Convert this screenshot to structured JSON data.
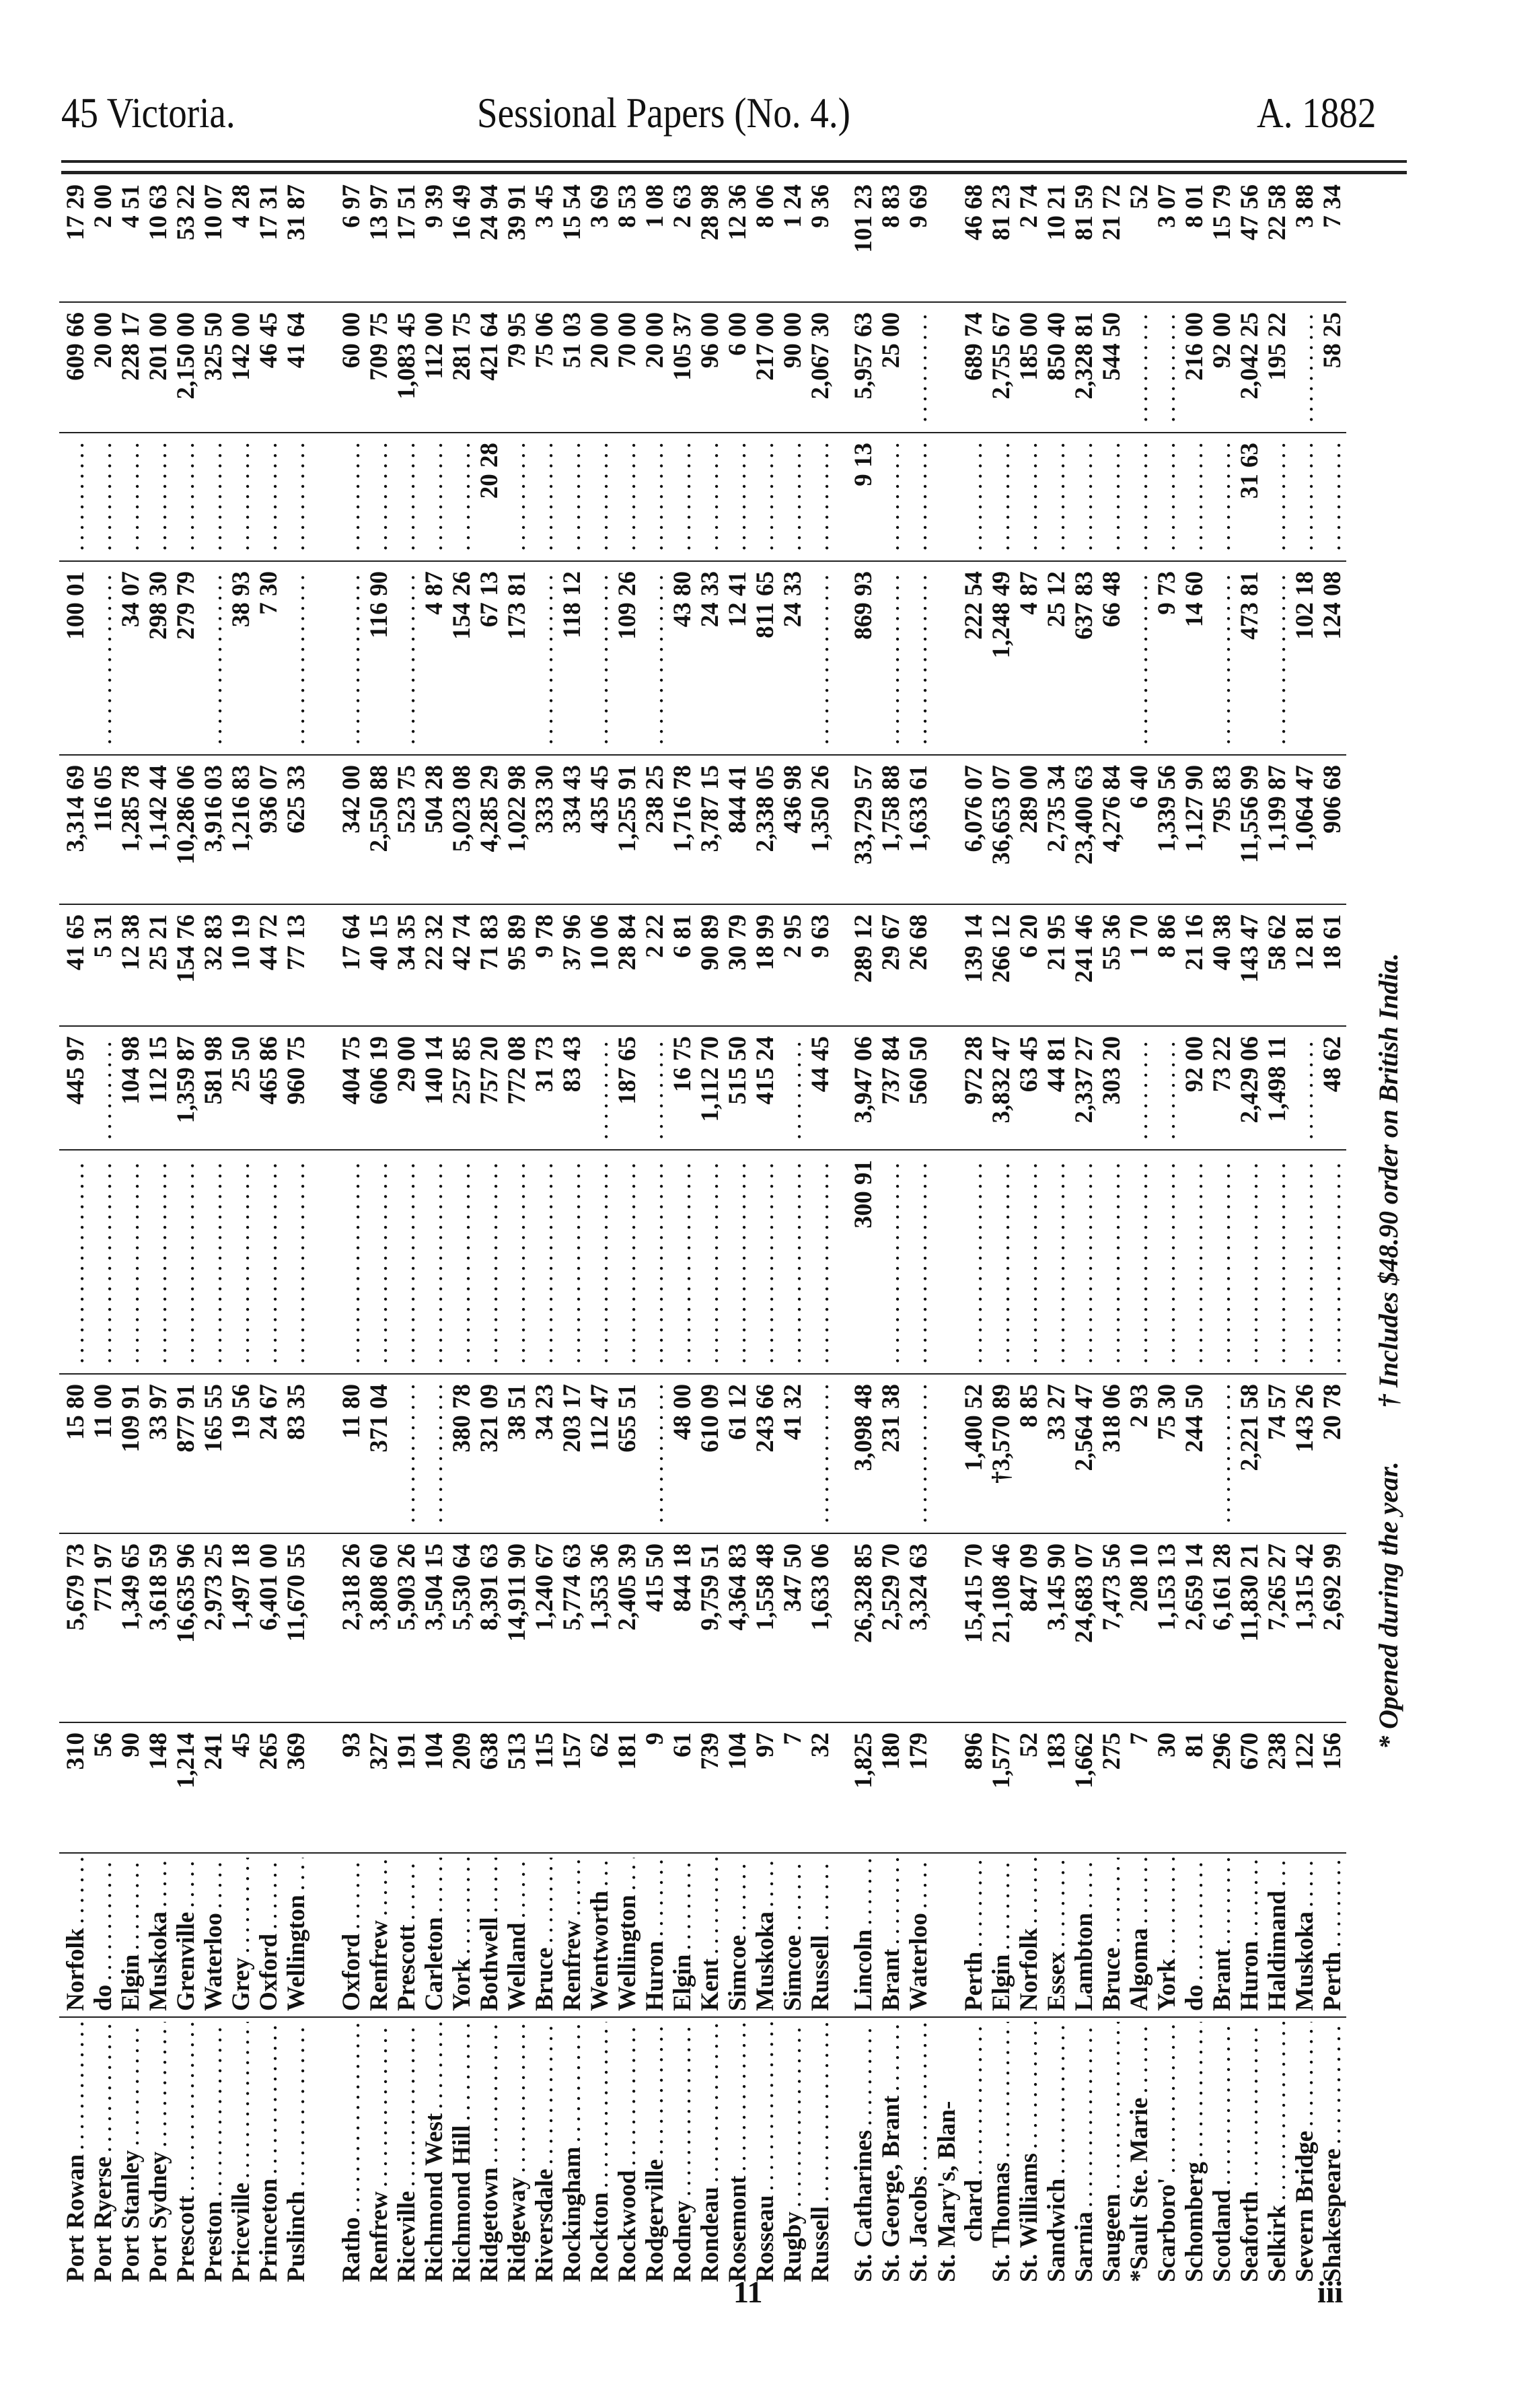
{
  "header": {
    "left": "45 Victoria.",
    "center": "Sessional Papers (No. 4.)",
    "right": "A. 1882"
  },
  "signature_marks": [
    "11",
    "iii"
  ],
  "footnotes": {
    "opened": "* Opened during the year.",
    "dagger": "† Includes $48.90 order on British India."
  },
  "groups": [
    {
      "rows": [
        {
          "name": "Port Rowan",
          "county": "Norfolk",
          "values": [
            "310",
            "5,679 73",
            "15 80",
            null,
            "445 97",
            "41 65",
            "3,314 69",
            "100 01",
            null,
            "609 66",
            "17 29"
          ]
        },
        {
          "name": "Port Ryerse",
          "county": "do",
          "values": [
            "56",
            "771 97",
            "11 00",
            null,
            null,
            "5 31",
            "116 05",
            null,
            null,
            "20 00",
            "2 00"
          ]
        },
        {
          "name": "Port Stanley",
          "county": "Elgin",
          "values": [
            "90",
            "1,349 65",
            "109 91",
            null,
            "104 98",
            "12 38",
            "1,285 78",
            "34 07",
            null,
            "228 17",
            "4 51"
          ]
        },
        {
          "name": "Port Sydney",
          "county": "Muskoka",
          "values": [
            "148",
            "3,618 59",
            "33 97",
            null,
            "112 15",
            "25 21",
            "1,142 44",
            "298 30",
            null,
            "201 00",
            "10 63"
          ]
        },
        {
          "name": "Prescott",
          "county": "Grenville",
          "values": [
            "1,214",
            "16,635 96",
            "877 91",
            null,
            "1,359 87",
            "154 76",
            "10,286 06",
            "279 79",
            null,
            "2,150 00",
            "53 22"
          ]
        },
        {
          "name": "Preston",
          "county": "Waterloo",
          "values": [
            "241",
            "2,973 25",
            "165 55",
            null,
            "581 98",
            "32 83",
            "3,916 03",
            null,
            null,
            "325 50",
            "10 07"
          ]
        },
        {
          "name": "Priceville",
          "county": "Grey",
          "values": [
            "45",
            "1,497 18",
            "19 56",
            null,
            "25 50",
            "10 19",
            "1,216 83",
            "38 93",
            null,
            "142 00",
            "4 28"
          ]
        },
        {
          "name": "Princeton",
          "county": "Oxford",
          "values": [
            "265",
            "6,401 00",
            "24 67",
            null,
            "465 86",
            "44 72",
            "936 07",
            "7 30",
            null,
            "46 45",
            "17 31"
          ]
        },
        {
          "name": "Puslinch",
          "county": "Wellington",
          "values": [
            "369",
            "11,670 55",
            "83 35",
            null,
            "960 75",
            "77 13",
            "625 33",
            null,
            null,
            "41 64",
            "31 87"
          ]
        }
      ]
    },
    {
      "rows": [
        {
          "name": "Ratho",
          "county": "Oxford",
          "values": [
            "93",
            "2,318 26",
            "11 80",
            null,
            "404 75",
            "17 64",
            "342 00",
            null,
            null,
            "60 00",
            "6 97"
          ]
        },
        {
          "name": "Renfrew",
          "county": "Renfrew",
          "values": [
            "327",
            "3,808 60",
            "371 04",
            null,
            "606 19",
            "40 15",
            "2,550 88",
            "116 90",
            null,
            "709 75",
            "13 97"
          ]
        },
        {
          "name": "Riceville",
          "county": "Prescott",
          "values": [
            "191",
            "5,903 26",
            null,
            null,
            "29 00",
            "34 35",
            "523 75",
            null,
            null,
            "1,083 45",
            "17 51"
          ]
        },
        {
          "name": "Richmond West",
          "county": "Carleton",
          "values": [
            "104",
            "3,504 15",
            null,
            null,
            "140 14",
            "22 32",
            "504 28",
            "4 87",
            null,
            "112 00",
            "9 39"
          ]
        },
        {
          "name": "Richmond Hill",
          "county": "York",
          "values": [
            "209",
            "5,530 64",
            "380 78",
            null,
            "257 85",
            "42 74",
            "5,023 08",
            "154 26",
            null,
            "281 75",
            "16 49"
          ]
        },
        {
          "name": "Ridgetown",
          "county": "Bothwell",
          "values": [
            "638",
            "8,391 63",
            "321 09",
            null,
            "757 20",
            "71 83",
            "4,285 29",
            "67 13",
            "20 28",
            "421 64",
            "24 94"
          ]
        },
        {
          "name": "Ridgeway",
          "county": "Welland",
          "values": [
            "513",
            "14,911 90",
            "38 51",
            null,
            "772 08",
            "95 89",
            "1,022 98",
            "173 81",
            null,
            "79 95",
            "39 91"
          ]
        },
        {
          "name": "Riversdale",
          "county": "Bruce",
          "values": [
            "115",
            "1,240 67",
            "34 23",
            null,
            "31 73",
            "9 78",
            "333 30",
            null,
            null,
            "75 06",
            "3 45"
          ]
        },
        {
          "name": "Rockingham",
          "county": "Renfrew",
          "values": [
            "157",
            "5,774 63",
            "203 17",
            null,
            "83 43",
            "37 96",
            "334 43",
            "118 12",
            null,
            "51 03",
            "15 54"
          ]
        },
        {
          "name": "Rockton",
          "county": "Wentworth",
          "values": [
            "62",
            "1,353 36",
            "112 47",
            null,
            null,
            "10 06",
            "435 45",
            null,
            null,
            "20 00",
            "3 69"
          ]
        },
        {
          "name": "Rockwood",
          "county": "Wellington",
          "values": [
            "181",
            "2,405 39",
            "655 51",
            null,
            "187 65",
            "28 84",
            "1,255 91",
            "109 26",
            null,
            "70 00",
            "8 53"
          ]
        },
        {
          "name": "Rodgerville",
          "county": "Huron",
          "values": [
            "9",
            "415 50",
            null,
            null,
            null,
            "2 22",
            "238 25",
            null,
            null,
            "20 00",
            "1 08"
          ]
        },
        {
          "name": "Rodney",
          "county": "Elgin",
          "values": [
            "61",
            "844 18",
            "48 00",
            null,
            "16 75",
            "6 81",
            "1,716 78",
            "43 80",
            null,
            "105 37",
            "2 63"
          ]
        },
        {
          "name": "Rondeau",
          "county": "Kent",
          "values": [
            "739",
            "9,759 51",
            "610 09",
            null,
            "1,112 70",
            "90 89",
            "3,787 15",
            "24 33",
            null,
            "96 00",
            "28 98"
          ]
        },
        {
          "name": "Rosemont",
          "county": "Simcoe",
          "values": [
            "104",
            "4,364 83",
            "61 12",
            null,
            "515 50",
            "30 79",
            "844 41",
            "12 41",
            null,
            "6 00",
            "12 36"
          ]
        },
        {
          "name": "Rosseau",
          "county": "Muskoka",
          "values": [
            "97",
            "1,558 48",
            "243 66",
            null,
            "415 24",
            "18 99",
            "2,338 05",
            "811 65",
            null,
            "217 00",
            "8 06"
          ]
        },
        {
          "name": "Rugby",
          "county": "Simcoe",
          "values": [
            "7",
            "347 50",
            "41 32",
            null,
            null,
            "2 95",
            "436 98",
            "24 33",
            null,
            "90 00",
            "1 24"
          ]
        },
        {
          "name": "Russell",
          "county": "Russell",
          "values": [
            "32",
            "1,633 06",
            null,
            null,
            "44 45",
            "9 63",
            "1,350 26",
            null,
            null,
            "2,067 30",
            "9 36"
          ]
        }
      ]
    },
    {
      "rows": [
        {
          "name": "St. Catharines",
          "county": "Lincoln",
          "values": [
            "1,825",
            "26,328 85",
            "3,098 48",
            "300 91",
            "3,947 06",
            "289 12",
            "33,729 57",
            "869 93",
            "9 13",
            "5,957 63",
            "101 23"
          ]
        },
        {
          "name": "St. George, Brant",
          "county": "Brant",
          "values": [
            "180",
            "2,529 70",
            "231 38",
            null,
            "737 84",
            "29 67",
            "1,758 88",
            null,
            null,
            "25 00",
            "8 83"
          ]
        },
        {
          "name": "St. Jacobs",
          "county": "Waterloo",
          "values": [
            "179",
            "3,324 63",
            null,
            null,
            "560 50",
            "26 68",
            "1,633 61",
            null,
            null,
            null,
            "9 69"
          ]
        },
        {
          "name": "St. Mary's, Blan-",
          "name_cont": "chard",
          "county": "Perth",
          "values": [
            "896",
            "15,415 70",
            "1,400 52",
            null,
            "972 28",
            "139 14",
            "6,076 07",
            "222 54",
            null,
            "689 74",
            "46 68"
          ]
        },
        {
          "name": "St. Thomas",
          "county": "Elgin",
          "values": [
            "1,577",
            "21,108 46",
            "†3,570 89",
            null,
            "3,832 47",
            "266 12",
            "36,653 07",
            "1,248 49",
            null,
            "2,755 67",
            "81 23"
          ]
        },
        {
          "name": "St. Williams",
          "county": "Norfolk",
          "values": [
            "52",
            "847 09",
            "8 85",
            null,
            "63 45",
            "6 20",
            "289 00",
            "4 87",
            null,
            "185 00",
            "2 74"
          ]
        },
        {
          "name": "Sandwich",
          "county": "Essex",
          "values": [
            "183",
            "3,145 90",
            "33 27",
            null,
            "44 81",
            "21 95",
            "2,735 34",
            "25 12",
            null,
            "850 40",
            "10 21"
          ]
        },
        {
          "name": "Sarnia",
          "county": "Lambton",
          "values": [
            "1,662",
            "24,683 07",
            "2,564 47",
            null,
            "2,337 27",
            "241 46",
            "23,400 63",
            "637 83",
            null,
            "2,328 81",
            "81 59"
          ]
        },
        {
          "name": "Saugeen",
          "county": "Bruce",
          "values": [
            "275",
            "7,473 56",
            "318 06",
            null,
            "303 20",
            "55 36",
            "4,276 84",
            "66 48",
            null,
            "544 50",
            "21 72"
          ]
        },
        {
          "name": "*Sault Ste. Marie",
          "county": "Algoma",
          "values": [
            "7",
            "208 10",
            "2 93",
            null,
            null,
            "1 70",
            "6 40",
            null,
            null,
            null,
            "52"
          ]
        },
        {
          "name": "Scarboro'",
          "county": "York",
          "values": [
            "30",
            "1,153 13",
            "75 30",
            null,
            null,
            "8 86",
            "1,339 56",
            "9 73",
            null,
            null,
            "3 07"
          ]
        },
        {
          "name": "Schomberg",
          "county": "do",
          "values": [
            "81",
            "2,659 14",
            "244 50",
            null,
            "92 00",
            "21 16",
            "1,127 90",
            "14 60",
            null,
            "216 00",
            "8 01"
          ]
        },
        {
          "name": "Scotland",
          "county": "Brant",
          "values": [
            "296",
            "6,161 28",
            null,
            null,
            "73 22",
            "40 38",
            "795 83",
            null,
            null,
            "92 00",
            "15 79"
          ]
        },
        {
          "name": "Seaforth",
          "county": "Huron",
          "values": [
            "670",
            "11,830 21",
            "2,221 58",
            null,
            "2,429 06",
            "143 47",
            "11,556 99",
            "473 81",
            "31 63",
            "2,042 25",
            "47 56"
          ]
        },
        {
          "name": "Selkirk",
          "county": "Haldimand",
          "values": [
            "238",
            "7,265 27",
            "74 57",
            null,
            "1,498 11",
            "58 62",
            "1,199 87",
            null,
            null,
            "195 22",
            "22 58"
          ]
        },
        {
          "name": "Severn Bridge",
          "county": "Muskoka",
          "values": [
            "122",
            "1,315 42",
            "143 26",
            null,
            null,
            "12 81",
            "1,064 47",
            "102 18",
            null,
            null,
            "3 88"
          ]
        },
        {
          "name": "Shakespeare",
          "county": "Perth",
          "values": [
            "156",
            "2,692 99",
            "20 78",
            null,
            "48 62",
            "18 61",
            "906 68",
            "124 08",
            null,
            "58 25",
            "7 34"
          ]
        }
      ]
    }
  ]
}
